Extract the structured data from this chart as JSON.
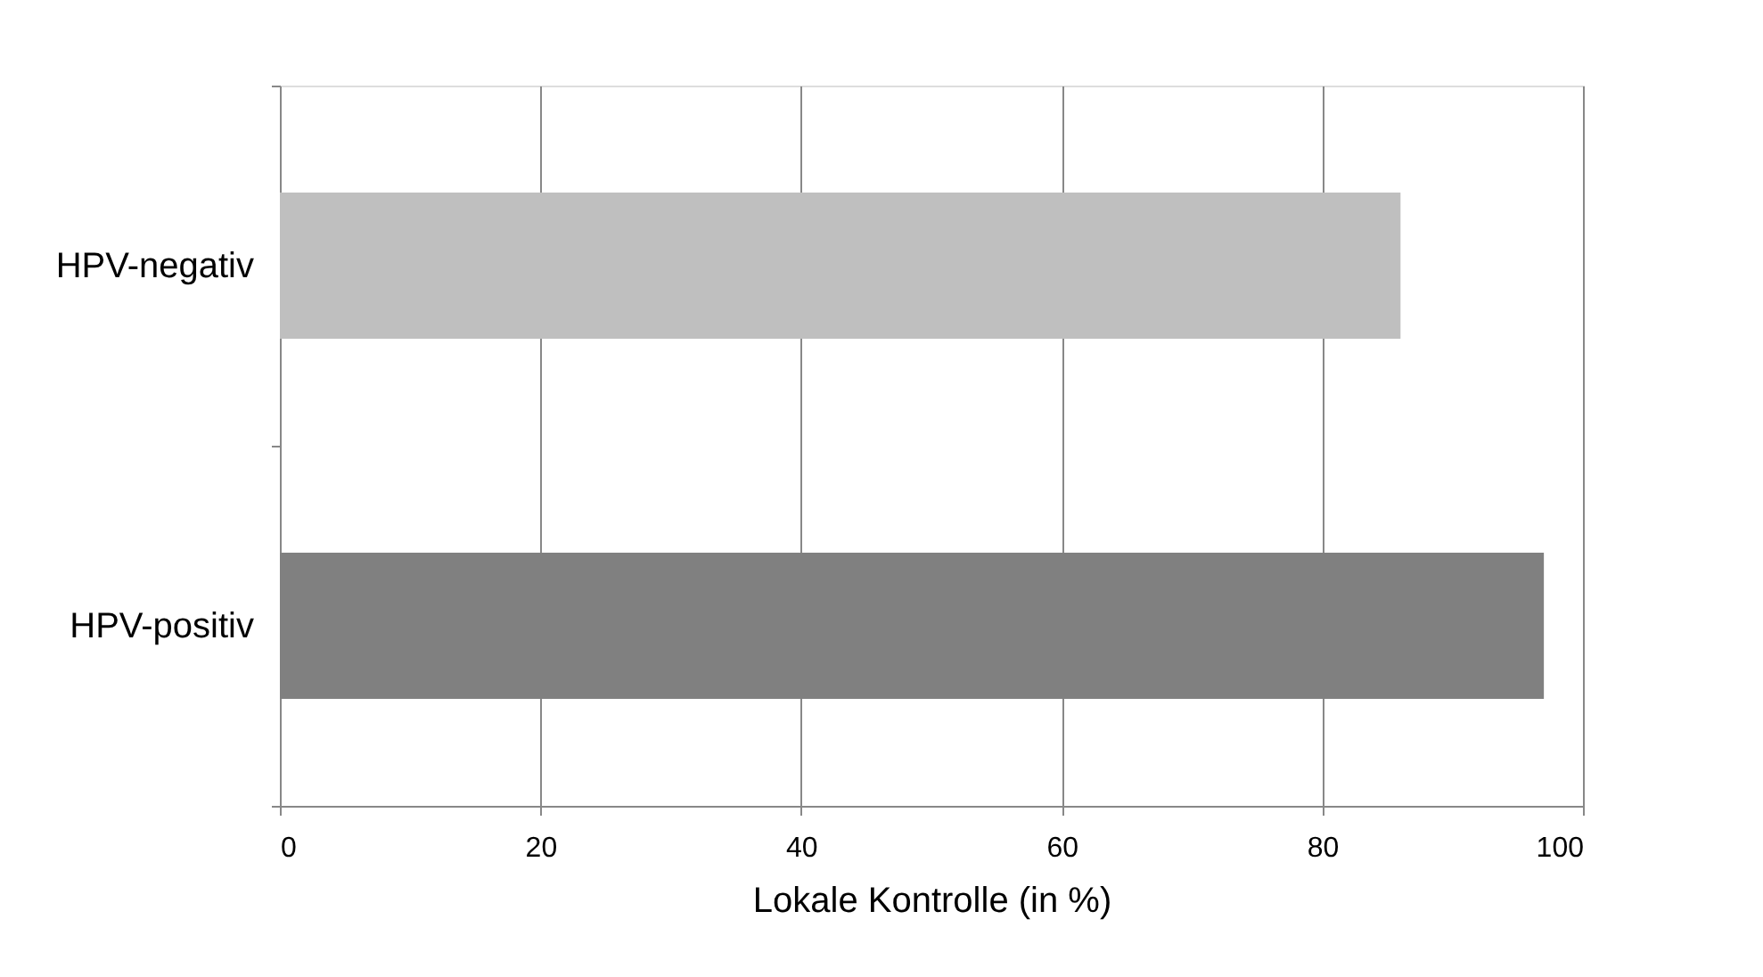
{
  "chart_data": {
    "type": "bar",
    "orientation": "horizontal",
    "categories": [
      "HPV-negativ",
      "HPV-positiv"
    ],
    "values": [
      86,
      97
    ],
    "colors": [
      "#bfbfbf",
      "#808080"
    ],
    "xlabel": "Lokale Kontrolle (in %)",
    "xlim": [
      0,
      100
    ],
    "xticks": [
      0,
      20,
      40,
      60,
      80,
      100
    ],
    "grid": "x"
  }
}
